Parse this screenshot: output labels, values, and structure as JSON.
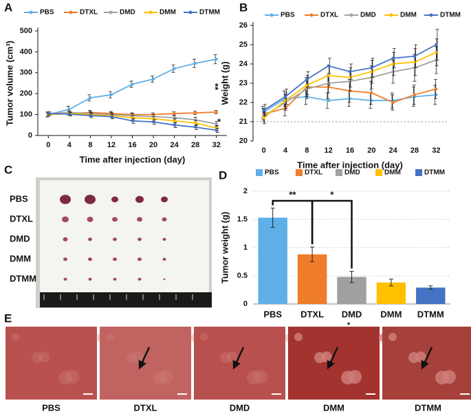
{
  "chart_data": [
    {
      "type": "line",
      "panel": "A",
      "x": [
        0,
        4,
        8,
        12,
        16,
        20,
        24,
        28,
        32
      ],
      "xlim": [
        -2,
        34
      ],
      "xticks": [
        0,
        4,
        8,
        12,
        16,
        20,
        24,
        28,
        32
      ],
      "ylim": [
        0,
        500
      ],
      "yticks": [
        0,
        100,
        200,
        300,
        400,
        500
      ],
      "xlabel": "Time after injection (day)",
      "ylabel": "Tumor volume (cm³)",
      "annotations": [
        "**",
        "*"
      ],
      "series": [
        {
          "name": "PBS",
          "color": "#5fb0e8",
          "values": [
            100,
            125,
            180,
            195,
            245,
            270,
            320,
            345,
            365
          ],
          "errors": [
            12,
            15,
            15,
            15,
            15,
            15,
            18,
            20,
            22
          ]
        },
        {
          "name": "DTXL",
          "color": "#f07d2c",
          "values": [
            100,
            105,
            110,
            105,
            100,
            100,
            105,
            108,
            112
          ],
          "errors": [
            8,
            8,
            10,
            10,
            8,
            8,
            8,
            8,
            8
          ]
        },
        {
          "name": "DMD",
          "color": "#a0a0a0",
          "values": [
            105,
            110,
            105,
            100,
            95,
            90,
            85,
            75,
            55
          ],
          "errors": [
            8,
            8,
            10,
            10,
            10,
            10,
            10,
            12,
            12
          ]
        },
        {
          "name": "DMM",
          "color": "#ffc000",
          "values": [
            100,
            105,
            100,
            95,
            85,
            80,
            70,
            60,
            35
          ],
          "errors": [
            8,
            8,
            10,
            10,
            10,
            10,
            10,
            12,
            12
          ]
        },
        {
          "name": "DTMM",
          "color": "#4472c4",
          "values": [
            105,
            102,
            95,
            90,
            70,
            65,
            50,
            40,
            25
          ],
          "errors": [
            8,
            8,
            10,
            10,
            12,
            12,
            12,
            12,
            10
          ]
        }
      ]
    },
    {
      "type": "line",
      "panel": "B",
      "x": [
        0,
        4,
        8,
        12,
        16,
        20,
        24,
        28,
        32
      ],
      "xlim": [
        -2,
        34
      ],
      "xticks": [
        0,
        4,
        8,
        12,
        16,
        20,
        24,
        28,
        32
      ],
      "ylim": [
        20,
        26
      ],
      "yticks": [
        20,
        21,
        22,
        23,
        24,
        25,
        26
      ],
      "xlabel": "Time after injection (day)",
      "ylabel": "Weight (g)",
      "reference_line": 21,
      "series": [
        {
          "name": "PBS",
          "color": "#5fb0e8",
          "values": [
            21.5,
            22.2,
            22.3,
            22.1,
            22.2,
            22.1,
            22.1,
            22.3,
            22.4
          ],
          "errors": [
            0.3,
            0.4,
            0.4,
            0.4,
            0.4,
            0.4,
            0.4,
            0.5,
            0.5
          ]
        },
        {
          "name": "DTXL",
          "color": "#f07d2c",
          "values": [
            21.4,
            21.7,
            22.8,
            22.8,
            22.6,
            22.5,
            22.0,
            22.4,
            22.7
          ],
          "errors": [
            0.3,
            0.4,
            0.5,
            0.6,
            0.6,
            0.6,
            0.4,
            0.5,
            0.5
          ]
        },
        {
          "name": "DMD",
          "color": "#a0a0a0",
          "values": [
            21.3,
            22.0,
            22.7,
            23.0,
            23.1,
            23.3,
            23.6,
            23.8,
            24.2
          ],
          "errors": [
            0.3,
            0.4,
            0.5,
            0.5,
            0.5,
            0.6,
            0.6,
            0.7,
            0.7
          ]
        },
        {
          "name": "DMM",
          "color": "#ffc000",
          "values": [
            21.2,
            22.1,
            22.9,
            23.4,
            23.3,
            23.6,
            24.0,
            24.1,
            24.6
          ],
          "errors": [
            0.3,
            0.4,
            0.5,
            0.5,
            0.5,
            0.6,
            0.6,
            0.7,
            0.7
          ]
        },
        {
          "name": "DTMM",
          "color": "#4472c4",
          "values": [
            21.6,
            22.3,
            23.2,
            23.9,
            23.6,
            23.8,
            24.3,
            24.4,
            25.0
          ],
          "errors": [
            0.3,
            0.4,
            0.4,
            0.4,
            0.4,
            0.5,
            0.5,
            0.6,
            0.8
          ]
        }
      ]
    },
    {
      "type": "bar",
      "panel": "D",
      "categories": [
        "PBS",
        "DTXL",
        "DMD",
        "DMM",
        "DTMM"
      ],
      "values": [
        1.53,
        0.88,
        0.48,
        0.38,
        0.29
      ],
      "errors": [
        0.17,
        0.13,
        0.1,
        0.06,
        0.03
      ],
      "colors": [
        "#5fb0e8",
        "#f07d2c",
        "#a0a0a0",
        "#ffc000",
        "#4472c4"
      ],
      "ylim": [
        0,
        2
      ],
      "yticks": [
        0,
        0.5,
        1,
        1.5,
        2
      ],
      "grid": true,
      "ylabel": "Tumor weight (g)",
      "annotations": [
        "**",
        "*"
      ]
    }
  ],
  "photo": {
    "panel": "C",
    "rows": [
      "PBS",
      "DTXL",
      "DMD",
      "DMM",
      "DTMM"
    ]
  },
  "histology": {
    "panel": "E",
    "labels": [
      "PBS",
      "DTXL",
      "DMD",
      "DMM",
      "DTMM"
    ],
    "mark": "*"
  }
}
